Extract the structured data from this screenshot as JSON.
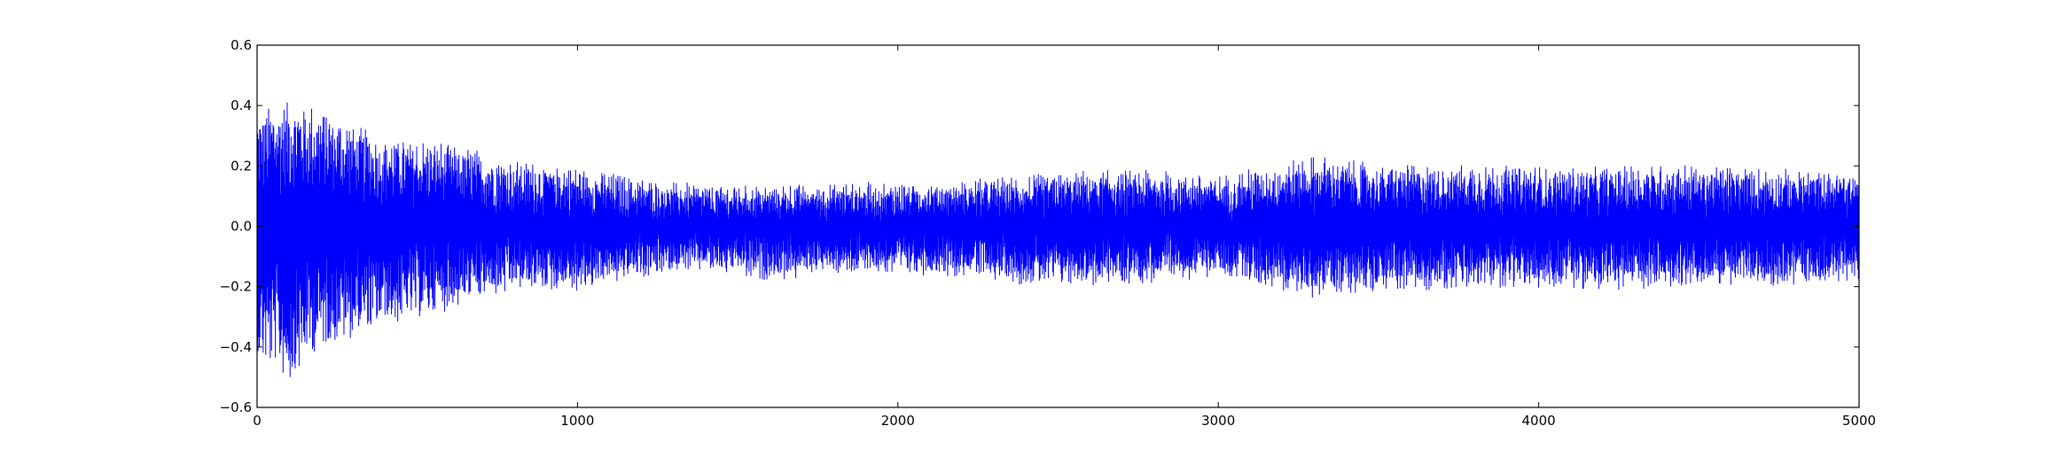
{
  "chart_data": {
    "type": "line",
    "title": "",
    "xlabel": "",
    "ylabel": "",
    "xlim": [
      0,
      5000
    ],
    "ylim": [
      -0.6,
      0.6
    ],
    "xticks": [
      0,
      1000,
      2000,
      3000,
      4000,
      5000
    ],
    "yticks": [
      -0.6,
      -0.4,
      -0.2,
      0.0,
      0.2,
      0.4,
      0.6
    ],
    "xtick_labels": [
      "0",
      "1000",
      "2000",
      "3000",
      "4000",
      "5000"
    ],
    "ytick_labels": [
      "−0.6",
      "−0.4",
      "−0.2",
      "0.0",
      "0.2",
      "0.4",
      "0.6"
    ],
    "grid": false,
    "legend": "none",
    "line_color": "#0000ff",
    "samples": 5000,
    "envelope": {
      "x": [
        0,
        100,
        200,
        400,
        600,
        800,
        1000,
        1200,
        1400,
        1600,
        1800,
        2000,
        2200,
        2400,
        2600,
        2800,
        3000,
        3300,
        3500,
        3800,
        4000,
        4200,
        4400,
        4600,
        4800,
        5000
      ],
      "upper": [
        0.36,
        0.41,
        0.38,
        0.28,
        0.26,
        0.2,
        0.18,
        0.14,
        0.12,
        0.12,
        0.13,
        0.13,
        0.14,
        0.15,
        0.17,
        0.17,
        0.15,
        0.22,
        0.19,
        0.19,
        0.18,
        0.18,
        0.19,
        0.18,
        0.17,
        0.17
      ],
      "lower": [
        -0.42,
        -0.5,
        -0.38,
        -0.32,
        -0.26,
        -0.2,
        -0.2,
        -0.16,
        -0.13,
        -0.17,
        -0.14,
        -0.14,
        -0.15,
        -0.18,
        -0.18,
        -0.17,
        -0.15,
        -0.22,
        -0.2,
        -0.19,
        -0.19,
        -0.2,
        -0.19,
        -0.18,
        -0.18,
        -0.17
      ]
    }
  }
}
